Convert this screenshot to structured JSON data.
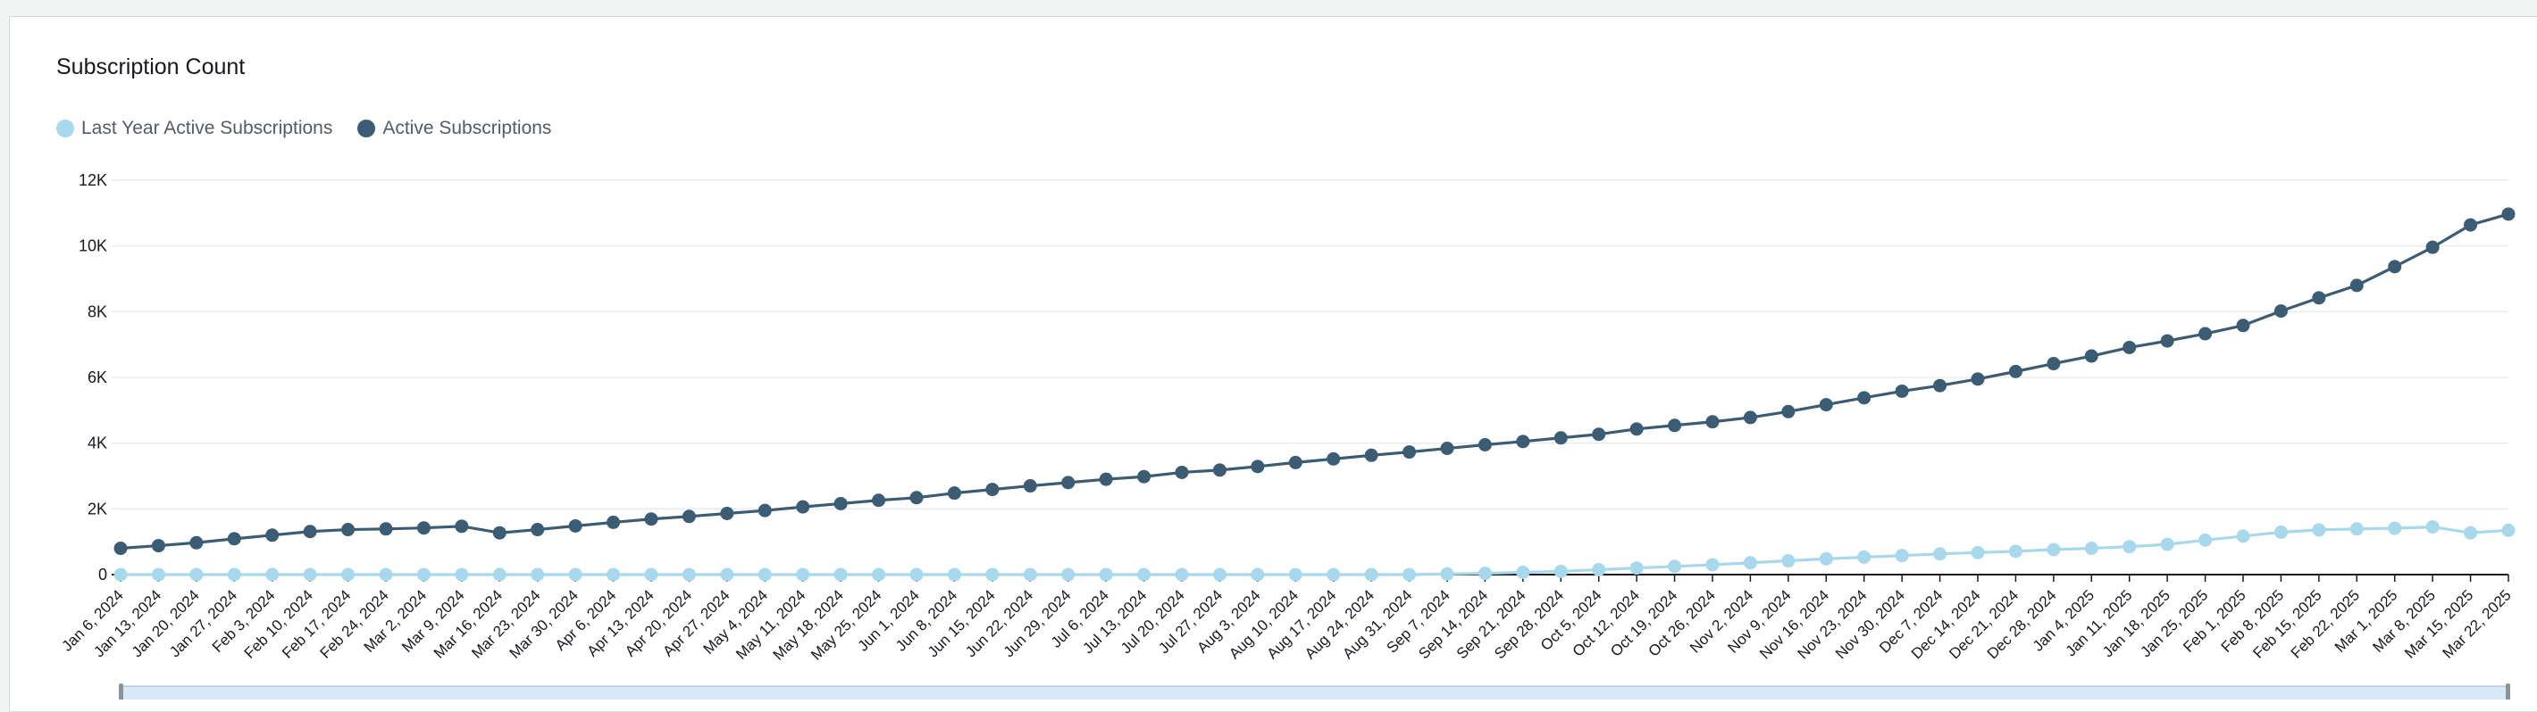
{
  "colors": {
    "last_year": "#a8d8ec",
    "active": "#3b5c73",
    "grid": "#e9ebed",
    "axis": "#16191f"
  },
  "chart_data": {
    "type": "line",
    "title": "Subscription Count",
    "xlabel": "",
    "ylabel": "",
    "ylim": [
      0,
      12000
    ],
    "yticks": [
      0,
      2000,
      4000,
      6000,
      8000,
      10000,
      12000
    ],
    "ytick_labels": [
      "0",
      "2K",
      "4K",
      "6K",
      "8K",
      "10K",
      "12K"
    ],
    "grid": true,
    "legend_position": "top-left",
    "categories": [
      "Jan 6, 2024",
      "Jan 13, 2024",
      "Jan 20, 2024",
      "Jan 27, 2024",
      "Feb 3, 2024",
      "Feb 10, 2024",
      "Feb 17, 2024",
      "Feb 24, 2024",
      "Mar 2, 2024",
      "Mar 9, 2024",
      "Mar 16, 2024",
      "Mar 23, 2024",
      "Mar 30, 2024",
      "Apr 6, 2024",
      "Apr 13, 2024",
      "Apr 20, 2024",
      "Apr 27, 2024",
      "May 4, 2024",
      "May 11, 2024",
      "May 18, 2024",
      "May 25, 2024",
      "Jun 1, 2024",
      "Jun 8, 2024",
      "Jun 15, 2024",
      "Jun 22, 2024",
      "Jun 29, 2024",
      "Jul 6, 2024",
      "Jul 13, 2024",
      "Jul 20, 2024",
      "Jul 27, 2024",
      "Aug 3, 2024",
      "Aug 10, 2024",
      "Aug 17, 2024",
      "Aug 24, 2024",
      "Aug 31, 2024",
      "Sep 7, 2024",
      "Sep 14, 2024",
      "Sep 21, 2024",
      "Sep 28, 2024",
      "Oct 5, 2024",
      "Oct 12, 2024",
      "Oct 19, 2024",
      "Oct 26, 2024",
      "Nov 2, 2024",
      "Nov 9, 2024",
      "Nov 16, 2024",
      "Nov 23, 2024",
      "Nov 30, 2024",
      "Dec 7, 2024",
      "Dec 14, 2024",
      "Dec 21, 2024",
      "Dec 28, 2024",
      "Jan 4, 2025",
      "Jan 11, 2025",
      "Jan 18, 2025",
      "Jan 25, 2025",
      "Feb 1, 2025",
      "Feb 8, 2025",
      "Feb 15, 2025",
      "Feb 22, 2025",
      "Mar 1, 2025",
      "Mar 8, 2025",
      "Mar 15, 2025",
      "Mar 22, 2025"
    ],
    "series": [
      {
        "name": "Last Year Active Subscriptions",
        "color": "#a8d8ec",
        "values": [
          0,
          0,
          0,
          0,
          0,
          0,
          0,
          0,
          0,
          0,
          0,
          0,
          0,
          0,
          0,
          0,
          0,
          0,
          0,
          0,
          0,
          0,
          0,
          0,
          0,
          0,
          0,
          0,
          0,
          0,
          0,
          0,
          0,
          0,
          0,
          20,
          40,
          70,
          100,
          150,
          200,
          250,
          300,
          360,
          420,
          480,
          530,
          580,
          630,
          670,
          710,
          760,
          800,
          850,
          920,
          1050,
          1170,
          1290,
          1360,
          1390,
          1410,
          1450,
          1270,
          1350
        ]
      },
      {
        "name": "Active Subscriptions",
        "color": "#3b5c73",
        "values": [
          800,
          880,
          970,
          1090,
          1200,
          1310,
          1370,
          1390,
          1420,
          1470,
          1270,
          1370,
          1480,
          1590,
          1690,
          1770,
          1860,
          1950,
          2060,
          2160,
          2260,
          2340,
          2480,
          2590,
          2700,
          2800,
          2900,
          2980,
          3110,
          3180,
          3290,
          3410,
          3520,
          3630,
          3730,
          3840,
          3950,
          4050,
          4160,
          4270,
          4430,
          4540,
          4650,
          4780,
          4960,
          5170,
          5380,
          5580,
          5750,
          5950,
          6180,
          6420,
          6650,
          6910,
          7110,
          7330,
          7580,
          8020,
          8420,
          8800,
          9370,
          9960,
          10640,
          10970
        ]
      }
    ]
  }
}
